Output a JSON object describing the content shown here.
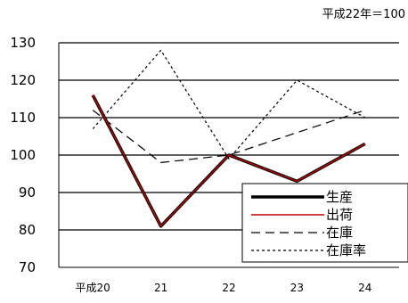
{
  "chart_data": {
    "type": "line",
    "note": "平成22年＝100",
    "categories": [
      "平成20",
      "21",
      "22",
      "23",
      "24"
    ],
    "ylim": [
      70,
      130
    ],
    "yticks": [
      70,
      80,
      90,
      100,
      110,
      120,
      130
    ],
    "grid": true,
    "legend_position": "bottom-right",
    "series": [
      {
        "name": "生産",
        "values": [
          116,
          81,
          100,
          93,
          103
        ],
        "color": "#000000",
        "style": "solid-thick"
      },
      {
        "name": "出荷",
        "values": [
          116,
          81,
          100,
          93,
          103
        ],
        "color": "#c00000",
        "style": "solid"
      },
      {
        "name": "在庫",
        "values": [
          112,
          98,
          100,
          106,
          112
        ],
        "color": "#000000",
        "style": "dash"
      },
      {
        "name": "在庫率",
        "values": [
          107,
          128,
          99,
          120,
          110
        ],
        "color": "#000000",
        "style": "dot"
      }
    ]
  }
}
